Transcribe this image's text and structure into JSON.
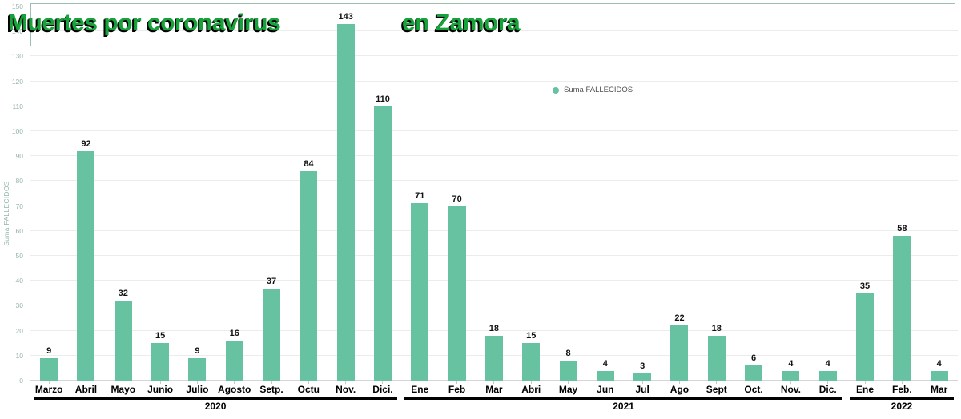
{
  "title": {
    "part1": "Muertes por coronavirus",
    "part2": "en Zamora"
  },
  "legend": {
    "label": "Suma FALLECIDOS"
  },
  "y_axis": {
    "title": "Suma FALLECIDOS"
  },
  "colors": {
    "bar": "#66c2a0",
    "title_green": "#18a23b",
    "title_shadow": "#000000",
    "axis_tick_label": "#93b5a5",
    "gridline": "#ececec",
    "title_box_border": "#9dbfae"
  },
  "chart_data": {
    "type": "bar",
    "title": "Muertes por coronavirus en Zamora",
    "xlabel": "",
    "ylabel": "Suma FALLECIDOS",
    "ylim": [
      0,
      150
    ],
    "ytick_step": 10,
    "grid": true,
    "legend_entries": [
      "Suma FALLECIDOS"
    ],
    "legend_position": "center-right of plot, inline",
    "categories": [
      "Marzo",
      "Abril",
      "Mayo",
      "Junio",
      "Julio",
      "Agosto",
      "Setp.",
      "Octu",
      "Nov.",
      "Dici.",
      "Ene",
      "Feb",
      "Mar",
      "Abri",
      "May",
      "Jun",
      "Jul",
      "Ago",
      "Sept",
      "Oct.",
      "Nov.",
      "Dic.",
      "Ene",
      "Feb.",
      "Mar"
    ],
    "values": [
      9,
      92,
      32,
      15,
      9,
      16,
      37,
      84,
      143,
      110,
      71,
      70,
      18,
      15,
      8,
      4,
      3,
      22,
      18,
      6,
      4,
      4,
      35,
      58,
      4
    ],
    "groups": [
      {
        "label": "2020",
        "count": 10
      },
      {
        "label": "2021",
        "count": 12
      },
      {
        "label": "2022",
        "count": 3
      }
    ]
  }
}
